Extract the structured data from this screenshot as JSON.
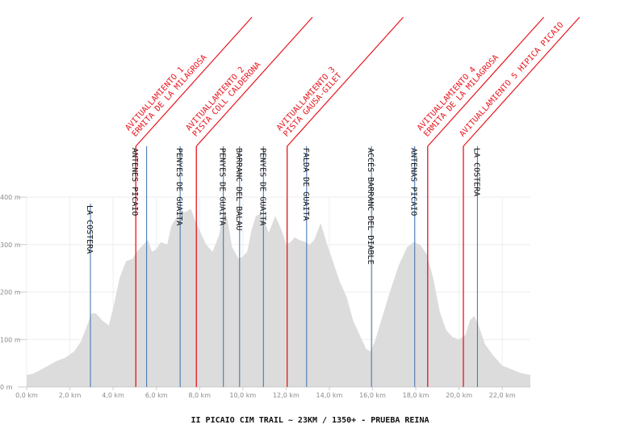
{
  "chart_data": {
    "type": "area",
    "title": "II PICAIO CIM TRAIL ~ 23KM / 1350+ - PRUEBA REINA",
    "xlabel": "",
    "ylabel": "",
    "xlim": [
      0,
      23.3
    ],
    "ylim": [
      0,
      400
    ],
    "grid": true,
    "x_ticks": [
      0,
      2,
      4,
      6,
      8,
      10,
      12,
      14,
      16,
      18,
      20,
      22
    ],
    "x_tick_labels": [
      "0,0 km",
      "2,0 km",
      "4,0 km",
      "6,0 km",
      "8,0 km",
      "10,0 km",
      "12,0 km",
      "14,0 km",
      "16,0 km",
      "18,0 km",
      "20,0 km",
      "22,0 km"
    ],
    "y_ticks": [
      0,
      100,
      200,
      300,
      400
    ],
    "y_tick_labels": [
      "0 m",
      "100 m",
      "200 m",
      "300 m",
      "400 m"
    ],
    "fill_color": "#dcdcdc",
    "profile": {
      "x": [
        0,
        0.3,
        0.6,
        1.0,
        1.4,
        1.8,
        2.2,
        2.5,
        2.8,
        3.0,
        3.2,
        3.5,
        3.8,
        4.0,
        4.3,
        4.6,
        4.9,
        5.1,
        5.4,
        5.6,
        5.8,
        6.0,
        6.2,
        6.5,
        6.7,
        6.9,
        7.1,
        7.3,
        7.6,
        7.8,
        8.0,
        8.3,
        8.6,
        8.9,
        9.1,
        9.3,
        9.5,
        9.8,
        10.0,
        10.2,
        10.4,
        10.6,
        10.8,
        11.0,
        11.2,
        11.5,
        11.8,
        12.0,
        12.2,
        12.4,
        12.6,
        12.9,
        13.1,
        13.3,
        13.6,
        13.9,
        14.2,
        14.5,
        14.8,
        15.1,
        15.4,
        15.7,
        15.9,
        16.1,
        16.4,
        16.8,
        17.2,
        17.6,
        17.9,
        18.2,
        18.5,
        18.8,
        19.1,
        19.4,
        19.7,
        20.0,
        20.3,
        20.5,
        20.7,
        20.9,
        21.2,
        21.6,
        22.0,
        22.4,
        22.8,
        23.3
      ],
      "y": [
        25,
        28,
        35,
        45,
        55,
        62,
        75,
        95,
        130,
        155,
        155,
        140,
        130,
        165,
        230,
        265,
        270,
        285,
        300,
        310,
        285,
        290,
        305,
        300,
        340,
        355,
        375,
        368,
        375,
        350,
        330,
        300,
        285,
        320,
        372,
        350,
        295,
        270,
        275,
        285,
        330,
        360,
        365,
        350,
        325,
        360,
        330,
        300,
        305,
        315,
        310,
        305,
        300,
        310,
        345,
        300,
        260,
        220,
        190,
        140,
        110,
        80,
        75,
        95,
        140,
        200,
        255,
        295,
        305,
        300,
        280,
        230,
        160,
        120,
        105,
        100,
        110,
        140,
        150,
        130,
        90,
        65,
        45,
        38,
        30,
        25
      ]
    },
    "markers": [
      {
        "x": 2.95,
        "y": 0,
        "kind": "poi",
        "label": "LA COSTERA"
      },
      {
        "x": 5.05,
        "y": 0,
        "kind": "aid",
        "label": "ANTENES PICAIO"
      },
      {
        "x": 5.55,
        "y": 0,
        "kind": "poi",
        "label": ""
      },
      {
        "x": 7.1,
        "y": 0,
        "kind": "poi",
        "label": "PENYES DE GUAITA"
      },
      {
        "x": 7.85,
        "y": 0,
        "kind": "aid",
        "label": ""
      },
      {
        "x": 9.1,
        "y": 0,
        "kind": "poi",
        "label": "PENYES DE GUAITA"
      },
      {
        "x": 9.85,
        "y": 0,
        "kind": "poi",
        "label": "BARRANC DEL BALAU"
      },
      {
        "x": 10.95,
        "y": 0,
        "kind": "poi",
        "label": "PENYES DE GUAITA"
      },
      {
        "x": 12.05,
        "y": 0,
        "kind": "aid",
        "label": ""
      },
      {
        "x": 12.95,
        "y": 0,
        "kind": "poi",
        "label": "FALDA DE GUAITA"
      },
      {
        "x": 15.95,
        "y": 0,
        "kind": "poi",
        "label": "ACCÉS BARRANC DEL DIABLE"
      },
      {
        "x": 17.95,
        "y": 0,
        "kind": "poi",
        "label": "ANTENAS PICAIO"
      },
      {
        "x": 18.55,
        "y": 0,
        "kind": "aid",
        "label": ""
      },
      {
        "x": 20.2,
        "y": 0,
        "kind": "aid",
        "label": ""
      },
      {
        "x": 20.85,
        "y": 0,
        "kind": "poi",
        "label": "LA COSTERA"
      }
    ],
    "aid_stations": [
      {
        "x": 5.05,
        "lines": [
          "AVITUALLAMIENTO 1",
          "ERMITA DE LA MILAGROSA"
        ]
      },
      {
        "x": 7.85,
        "lines": [
          "AVITUALLAMIENTO 2",
          "PISTA COLL CALDERONA"
        ]
      },
      {
        "x": 12.05,
        "lines": [
          "AVITUALLAMIENTO 3",
          "PISTA GAUSA-GILET"
        ]
      },
      {
        "x": 18.55,
        "lines": [
          "AVITUALLAMIENTO 4",
          "ERMITA DE LA MILAGROSA"
        ]
      },
      {
        "x": 20.2,
        "lines": [
          "AVITUALLAMIENTO 5 HIPICA PICAIO"
        ]
      }
    ],
    "colors": {
      "poi_line": "#3a6fb0",
      "aid_line": "#e8141c",
      "aid_text": "#e8141c",
      "grid": "#eeeeee",
      "axis": "#cccccc"
    }
  }
}
